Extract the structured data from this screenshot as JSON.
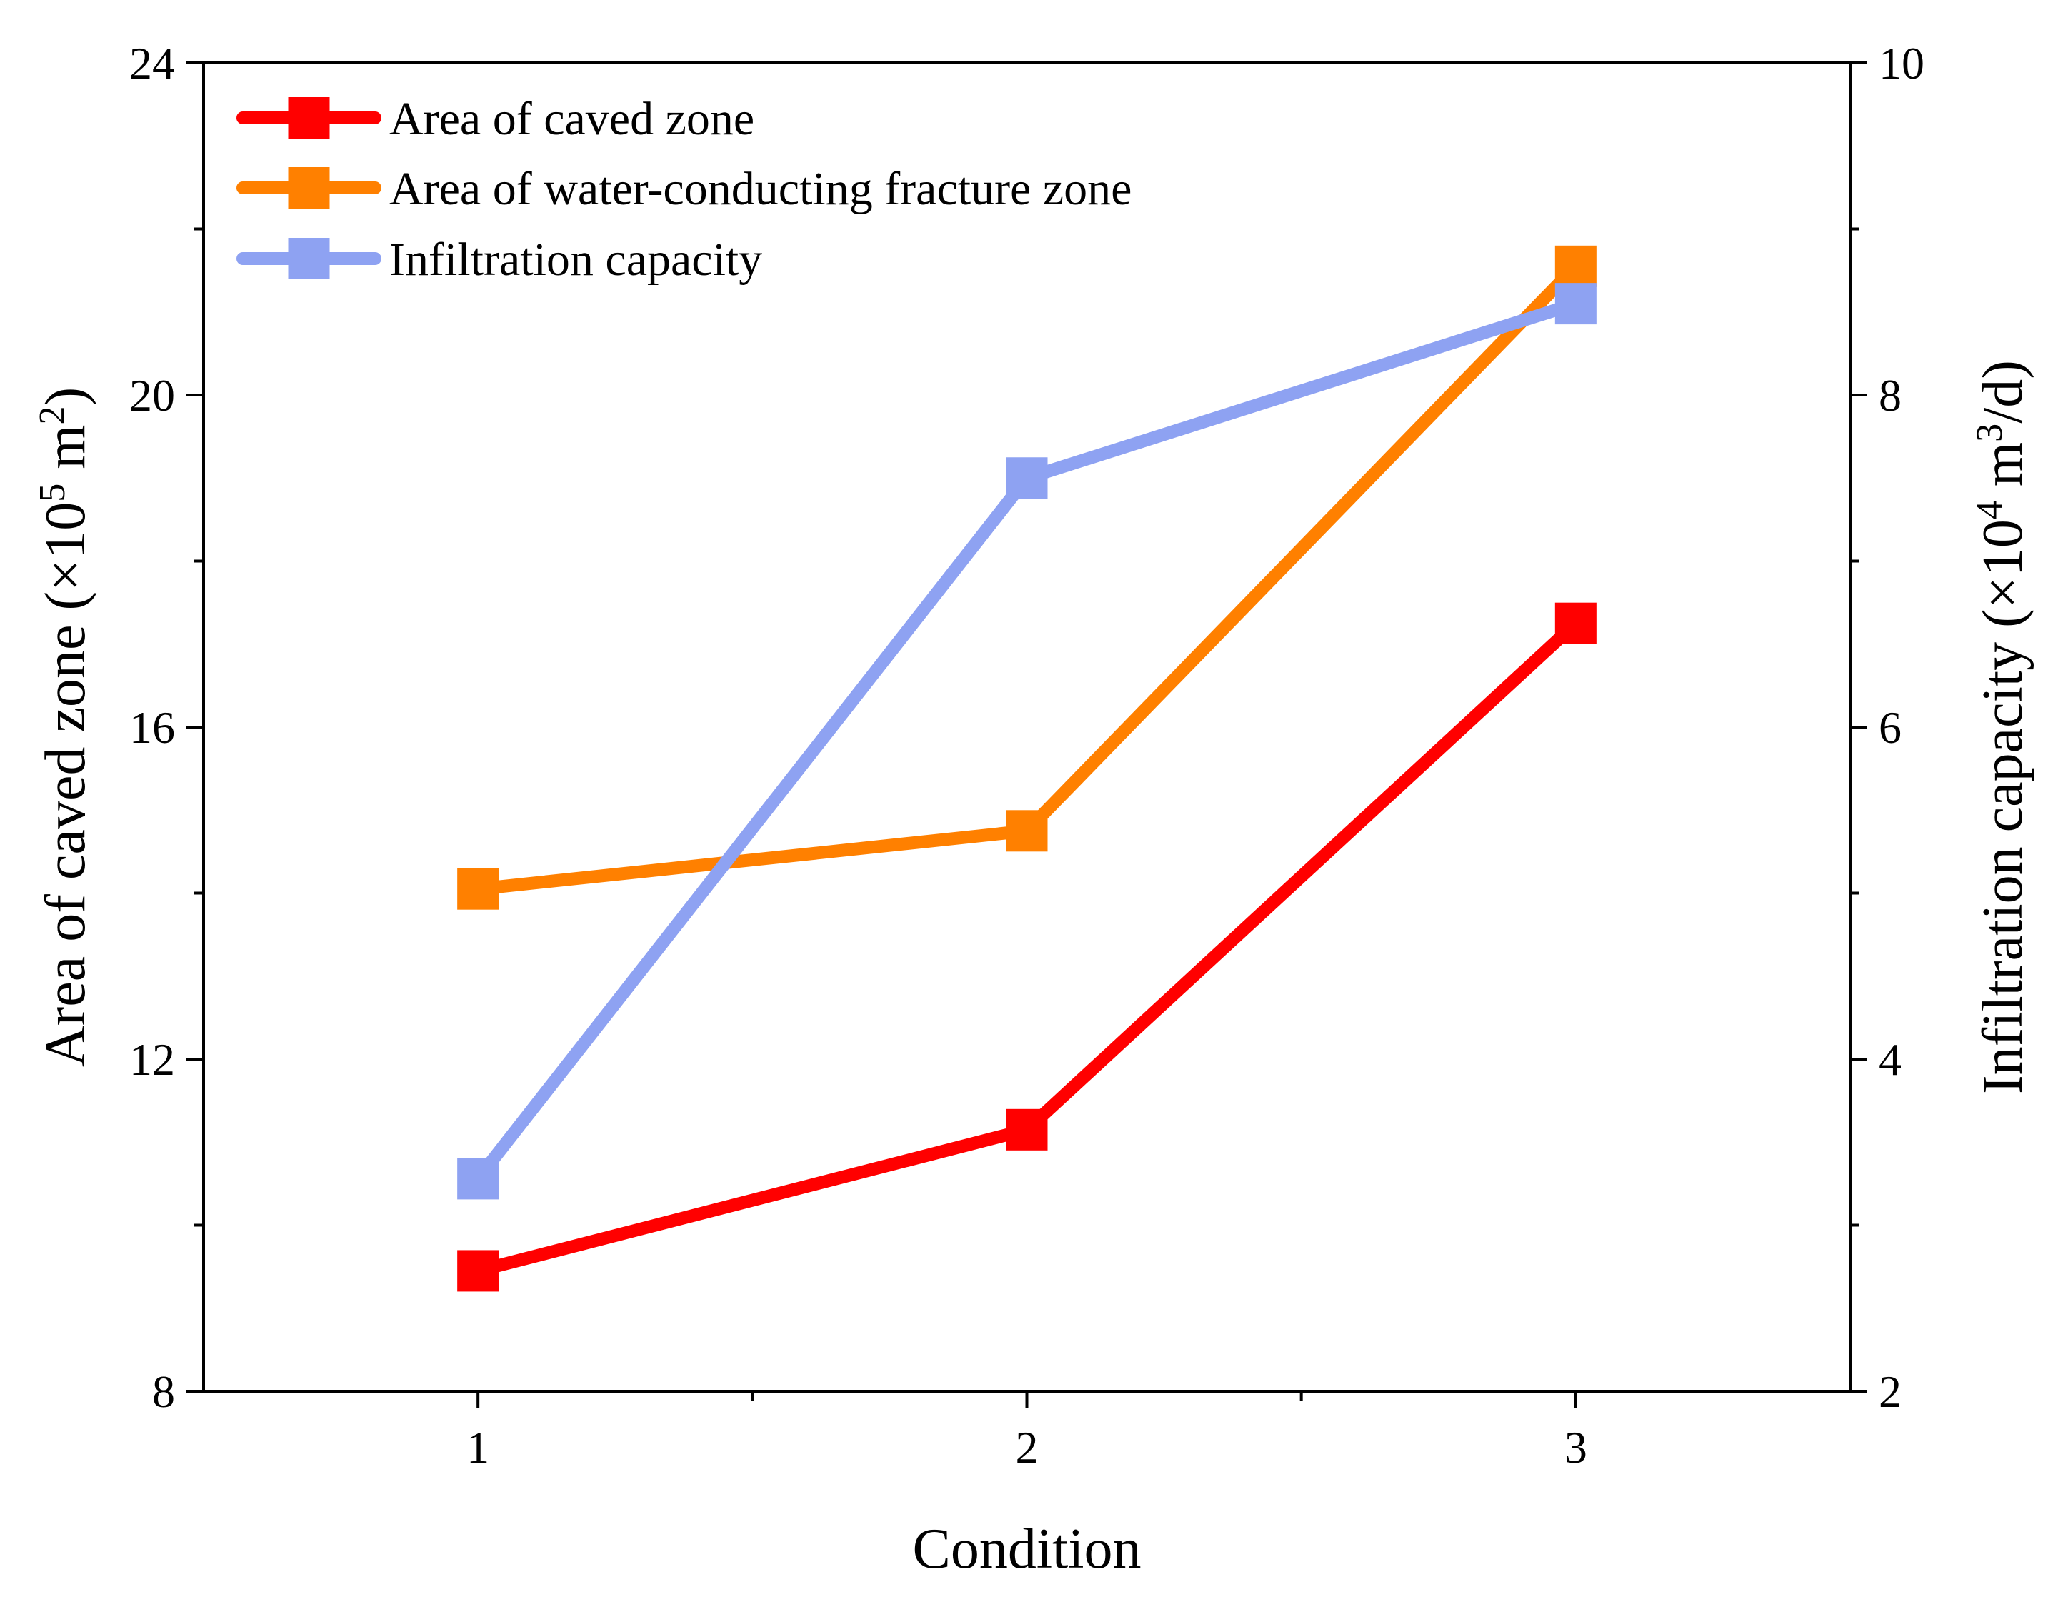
{
  "chart_data": {
    "type": "line",
    "x": [
      1,
      2,
      3
    ],
    "x_ticks": [
      "1",
      "2",
      "3"
    ],
    "xlabel": "Condition",
    "xlim": [
      0.5,
      3.5
    ],
    "ylabel_left": {
      "main": "Area of caved zone (×10",
      "sup": "5",
      "mid": " m",
      "sup2": "2",
      "end": ")"
    },
    "ylim_left": [
      8,
      24
    ],
    "yticks_left": [
      "8",
      "12",
      "16",
      "20",
      "24"
    ],
    "ylabel_right": {
      "main": "Infiltration capacity (×10",
      "sup": "4",
      "mid": " m",
      "sup2": "3",
      "end": "/d)"
    },
    "ylim_right": [
      2,
      10
    ],
    "yticks_right": [
      "2",
      "4",
      "6",
      "8",
      "10"
    ],
    "grid": false,
    "legend_position": "top-left",
    "series": [
      {
        "name": "Area of caved zone",
        "axis": "left",
        "color": "#ff0000",
        "marker": "square",
        "values": [
          9.45,
          11.15,
          17.25
        ]
      },
      {
        "name": "Area of water-conducting fracture zone",
        "axis": "left",
        "color": "#ff8000",
        "marker": "square",
        "values": [
          14.05,
          14.75,
          21.55
        ]
      },
      {
        "name": "Infiltration capacity",
        "axis": "right",
        "color": "#8ea2f2",
        "marker": "square",
        "values": [
          3.28,
          7.5,
          8.55
        ]
      }
    ]
  }
}
